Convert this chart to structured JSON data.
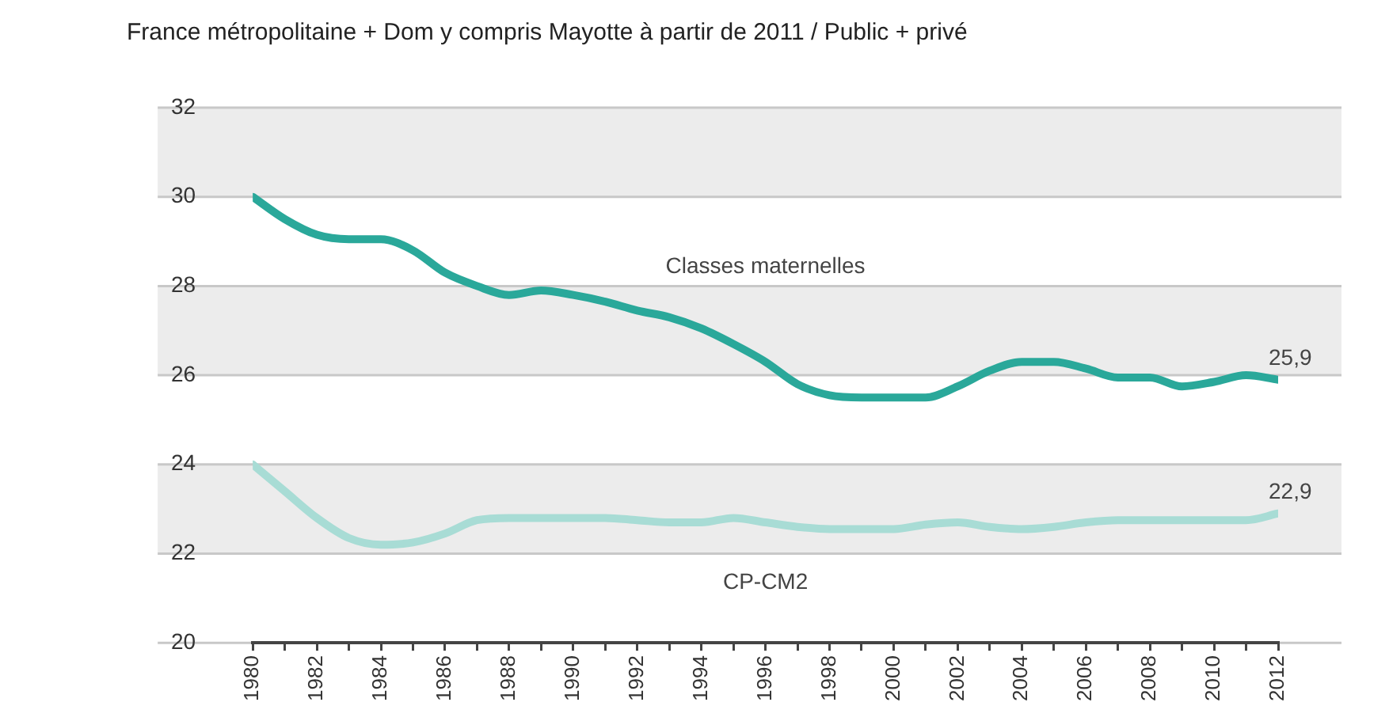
{
  "chart_data": {
    "type": "line",
    "title": "France métropolitaine + Dom y compris Mayotte à partir de 2011 / Public + privé",
    "x": [
      1980,
      1981,
      1982,
      1983,
      1984,
      1985,
      1986,
      1987,
      1988,
      1989,
      1990,
      1991,
      1992,
      1993,
      1994,
      1995,
      1996,
      1997,
      1998,
      1999,
      2000,
      2001,
      2002,
      2003,
      2004,
      2005,
      2006,
      2007,
      2008,
      2009,
      2010,
      2011,
      2012
    ],
    "series": [
      {
        "name": "Classes maternelles",
        "color": "#2aa89a",
        "values": [
          30.0,
          29.5,
          29.15,
          29.05,
          29.05,
          28.8,
          28.3,
          28.0,
          27.8,
          27.9,
          27.8,
          27.65,
          27.45,
          27.3,
          27.05,
          26.7,
          26.3,
          25.8,
          25.55,
          25.5,
          25.5,
          25.5,
          25.75,
          26.1,
          26.3,
          26.3,
          26.15,
          25.95,
          25.95,
          25.75,
          25.85,
          26.0,
          25.9
        ],
        "value_labels": [
          null,
          null,
          null,
          null,
          null,
          null,
          null,
          null,
          null,
          null,
          null,
          null,
          null,
          null,
          null,
          null,
          null,
          null,
          null,
          null,
          null,
          null,
          null,
          null,
          null,
          null,
          null,
          null,
          null,
          null,
          null,
          null,
          "25,9"
        ]
      },
      {
        "name": "CP-CM2",
        "color": "#a8dcd5",
        "values": [
          24.0,
          23.4,
          22.8,
          22.35,
          22.2,
          22.25,
          22.45,
          22.75,
          22.8,
          22.8,
          22.8,
          22.8,
          22.75,
          22.7,
          22.7,
          22.8,
          22.7,
          22.6,
          22.55,
          22.55,
          22.55,
          22.65,
          22.7,
          22.6,
          22.55,
          22.6,
          22.7,
          22.75,
          22.75,
          22.75,
          22.75,
          22.75,
          22.9
        ],
        "value_labels": [
          null,
          null,
          null,
          null,
          null,
          null,
          null,
          null,
          null,
          null,
          null,
          null,
          null,
          null,
          null,
          null,
          null,
          null,
          null,
          null,
          null,
          null,
          null,
          null,
          null,
          null,
          null,
          null,
          null,
          null,
          null,
          null,
          "22,9"
        ]
      }
    ],
    "xlim": [
      1980,
      2012
    ],
    "xticks": [
      1980,
      {
        "value": 1981,
        "label": null
      },
      1982,
      {
        "value": 1983,
        "label": null
      },
      1984,
      {
        "value": 1985,
        "label": null
      },
      1986,
      {
        "value": 1987,
        "label": null
      },
      1988,
      {
        "value": 1989,
        "label": null
      },
      1990,
      {
        "value": 1991,
        "label": null
      },
      1992,
      {
        "value": 1993,
        "label": null
      },
      1994,
      {
        "value": 1995,
        "label": null
      },
      1996,
      {
        "value": 1997,
        "label": null
      },
      1998,
      {
        "value": 1999,
        "label": null
      },
      2000,
      {
        "value": 2001,
        "label": null
      },
      2002,
      {
        "value": 2003,
        "label": null
      },
      2004,
      {
        "value": 2005,
        "label": null
      },
      2006,
      {
        "value": 2007,
        "label": null
      },
      2008,
      {
        "value": 2009,
        "label": null
      },
      2010,
      {
        "value": 2011,
        "label": null
      },
      2012
    ],
    "ylim": [
      20,
      32
    ],
    "yticks": [
      20,
      22,
      24,
      26,
      28,
      30,
      32
    ],
    "grid": "y",
    "legend": false,
    "marker": "none",
    "line_style": "solid"
  }
}
